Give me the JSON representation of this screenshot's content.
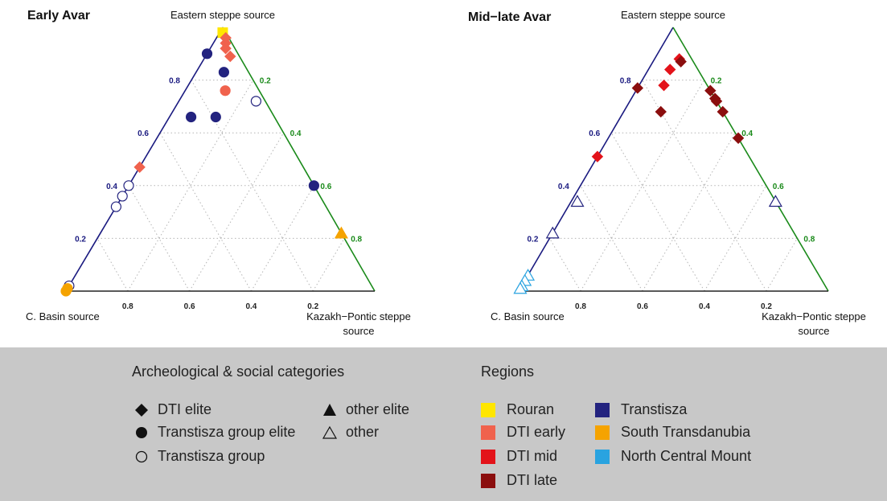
{
  "chart_data": [
    {
      "type": "ternary-scatter",
      "title": "Early Avar",
      "vertex_labels": {
        "top": "Eastern steppe source",
        "left": "C. Basin source",
        "right": [
          "Kazakh−Pontic steppe",
          "source"
        ]
      },
      "ticks": [
        "0.2",
        "0.4",
        "0.6",
        "0.8"
      ],
      "tick_colors": {
        "left_axis": "#1a1a80",
        "right_axis": "#1a8a1a",
        "bottom_axis": "#222222"
      },
      "points": [
        {
          "east": 0.98,
          "cbasin": 0.01,
          "kazakh": 0.01,
          "marker": "square",
          "filled": true,
          "color": "#FFE600"
        },
        {
          "east": 0.96,
          "cbasin": 0.01,
          "kazakh": 0.03,
          "marker": "diamond",
          "filled": true,
          "color": "#F0624D"
        },
        {
          "east": 0.94,
          "cbasin": 0.02,
          "kazakh": 0.04,
          "marker": "diamond",
          "filled": true,
          "color": "#F0624D"
        },
        {
          "east": 0.92,
          "cbasin": 0.03,
          "kazakh": 0.05,
          "marker": "diamond",
          "filled": true,
          "color": "#F0624D"
        },
        {
          "east": 0.89,
          "cbasin": 0.03,
          "kazakh": 0.08,
          "marker": "diamond",
          "filled": true,
          "color": "#F0624D"
        },
        {
          "east": 0.9,
          "cbasin": 0.1,
          "kazakh": 0.0,
          "marker": "circle",
          "filled": true,
          "color": "#23237F"
        },
        {
          "east": 0.83,
          "cbasin": 0.08,
          "kazakh": 0.09,
          "marker": "circle",
          "filled": true,
          "color": "#23237F"
        },
        {
          "east": 0.76,
          "cbasin": 0.11,
          "kazakh": 0.13,
          "marker": "circle",
          "filled": true,
          "color": "#F0624D"
        },
        {
          "east": 0.72,
          "cbasin": 0.03,
          "kazakh": 0.25,
          "marker": "circle",
          "filled": false,
          "color": "#23237F"
        },
        {
          "east": 0.66,
          "cbasin": 0.19,
          "kazakh": 0.15,
          "marker": "circle",
          "filled": true,
          "color": "#23237F"
        },
        {
          "east": 0.66,
          "cbasin": 0.27,
          "kazakh": 0.07,
          "marker": "circle",
          "filled": true,
          "color": "#23237F"
        },
        {
          "east": 0.47,
          "cbasin": 0.53,
          "kazakh": 0.0,
          "marker": "diamond",
          "filled": true,
          "color": "#F0624D"
        },
        {
          "east": 0.4,
          "cbasin": 0.6,
          "kazakh": 0.0,
          "marker": "circle",
          "filled": false,
          "color": "#23237F"
        },
        {
          "east": 0.36,
          "cbasin": 0.64,
          "kazakh": 0.0,
          "marker": "circle",
          "filled": false,
          "color": "#23237F"
        },
        {
          "east": 0.32,
          "cbasin": 0.68,
          "kazakh": 0.0,
          "marker": "circle",
          "filled": false,
          "color": "#23237F"
        },
        {
          "east": 0.4,
          "cbasin": 0.0,
          "kazakh": 0.6,
          "marker": "circle",
          "filled": true,
          "color": "#23237F"
        },
        {
          "east": 0.22,
          "cbasin": 0.0,
          "kazakh": 0.78,
          "marker": "triangle",
          "filled": true,
          "color": "#F5A300"
        },
        {
          "east": 0.02,
          "cbasin": 0.98,
          "kazakh": 0.0,
          "marker": "circle",
          "filled": false,
          "color": "#23237F"
        },
        {
          "east": 0.01,
          "cbasin": 0.99,
          "kazakh": 0.0,
          "marker": "circle",
          "filled": true,
          "color": "#F5A300"
        },
        {
          "east": 0.0,
          "cbasin": 1.0,
          "kazakh": 0.0,
          "marker": "circle",
          "filled": true,
          "color": "#F5A300"
        }
      ]
    },
    {
      "type": "ternary-scatter",
      "title": "Mid−late Avar",
      "vertex_labels": {
        "top": "Eastern steppe source",
        "left": "C. Basin source",
        "right": [
          "Kazakh−Pontic steppe",
          "source"
        ]
      },
      "ticks": [
        "0.2",
        "0.4",
        "0.6",
        "0.8"
      ],
      "tick_colors": {
        "left_axis": "#1a1a80",
        "right_axis": "#1a8a1a",
        "bottom_axis": "#222222"
      },
      "points": [
        {
          "east": 0.88,
          "cbasin": 0.04,
          "kazakh": 0.08,
          "marker": "diamond",
          "filled": true,
          "color": "#E3131A"
        },
        {
          "east": 0.87,
          "cbasin": 0.04,
          "kazakh": 0.09,
          "marker": "diamond",
          "filled": true,
          "color": "#8B0E0E"
        },
        {
          "east": 0.84,
          "cbasin": 0.09,
          "kazakh": 0.07,
          "marker": "diamond",
          "filled": true,
          "color": "#E3131A"
        },
        {
          "east": 0.78,
          "cbasin": 0.14,
          "kazakh": 0.08,
          "marker": "diamond",
          "filled": true,
          "color": "#E3131A"
        },
        {
          "east": 0.77,
          "cbasin": 0.23,
          "kazakh": 0.0,
          "marker": "diamond",
          "filled": true,
          "color": "#8B0E0E"
        },
        {
          "east": 0.76,
          "cbasin": 0.0,
          "kazakh": 0.24,
          "marker": "diamond",
          "filled": true,
          "color": "#8B0E0E"
        },
        {
          "east": 0.73,
          "cbasin": 0.0,
          "kazakh": 0.27,
          "marker": "diamond",
          "filled": true,
          "color": "#8B0E0E"
        },
        {
          "east": 0.72,
          "cbasin": 0.0,
          "kazakh": 0.28,
          "marker": "diamond",
          "filled": true,
          "color": "#8B0E0E"
        },
        {
          "east": 0.68,
          "cbasin": 0.0,
          "kazakh": 0.32,
          "marker": "diamond",
          "filled": true,
          "color": "#8B0E0E"
        },
        {
          "east": 0.68,
          "cbasin": 0.2,
          "kazakh": 0.12,
          "marker": "diamond",
          "filled": true,
          "color": "#8B0E0E"
        },
        {
          "east": 0.58,
          "cbasin": 0.0,
          "kazakh": 0.42,
          "marker": "diamond",
          "filled": true,
          "color": "#8B0E0E"
        },
        {
          "east": 0.51,
          "cbasin": 0.49,
          "kazakh": 0.0,
          "marker": "diamond",
          "filled": true,
          "color": "#E3131A"
        },
        {
          "east": 0.34,
          "cbasin": 0.64,
          "kazakh": 0.02,
          "marker": "triangle",
          "filled": false,
          "color": "#23237F"
        },
        {
          "east": 0.34,
          "cbasin": 0.0,
          "kazakh": 0.66,
          "marker": "triangle",
          "filled": false,
          "color": "#23237F"
        },
        {
          "east": 0.22,
          "cbasin": 0.78,
          "kazakh": 0.0,
          "marker": "triangle",
          "filled": false,
          "color": "#23237F"
        },
        {
          "east": 0.06,
          "cbasin": 0.94,
          "kazakh": 0.0,
          "marker": "triangle",
          "filled": false,
          "color": "#29A3E0"
        },
        {
          "east": 0.04,
          "cbasin": 0.96,
          "kazakh": 0.0,
          "marker": "triangle",
          "filled": false,
          "color": "#29A3E0"
        },
        {
          "east": 0.02,
          "cbasin": 0.98,
          "kazakh": 0.0,
          "marker": "triangle",
          "filled": false,
          "color": "#29A3E0"
        },
        {
          "east": 0.01,
          "cbasin": 0.99,
          "kazakh": 0.0,
          "marker": "triangle",
          "filled": false,
          "color": "#29A3E0"
        }
      ]
    }
  ],
  "legend": {
    "categories_title": "Archeological & social categories",
    "categories": [
      {
        "label": "DTI elite",
        "marker": "diamond",
        "filled": true
      },
      {
        "label": "Transtisza group elite",
        "marker": "circle",
        "filled": true
      },
      {
        "label": "Transtisza group",
        "marker": "circle",
        "filled": false
      },
      {
        "label": "other elite",
        "marker": "triangle",
        "filled": true
      },
      {
        "label": "other",
        "marker": "triangle",
        "filled": false
      }
    ],
    "regions_title": "Regions",
    "regions": [
      {
        "label": "Rouran",
        "color": "#FFE600"
      },
      {
        "label": "DTI early",
        "color": "#F0624D"
      },
      {
        "label": "DTI mid",
        "color": "#E3131A"
      },
      {
        "label": "DTI late",
        "color": "#8B0E0E"
      },
      {
        "label": "Transtisza",
        "color": "#23237F"
      },
      {
        "label": "South Transdanubia",
        "color": "#F5A300"
      },
      {
        "label": "North Central Mount",
        "color": "#29A3E0"
      }
    ]
  }
}
